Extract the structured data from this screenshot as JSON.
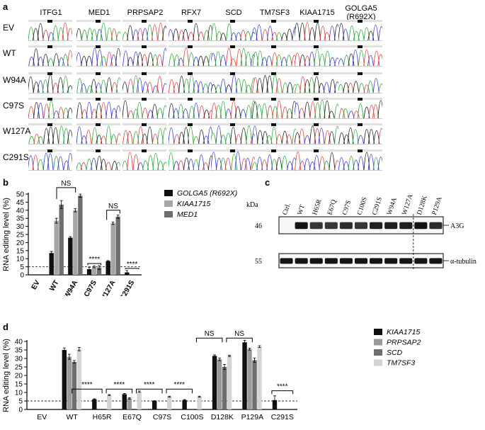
{
  "panel_a": {
    "letter": "a",
    "genes": [
      "ITFG1",
      "MED1",
      "PRPSAP2",
      "RFX7",
      "SCD",
      "TM7SF3",
      "KIAA1715",
      "GOLGA5 (R692X)"
    ],
    "genes_display": [
      [
        "ITFG1"
      ],
      [
        "MED1"
      ],
      [
        "PRPSAP2"
      ],
      [
        "RFX7"
      ],
      [
        "SCD"
      ],
      [
        "TM7SF3"
      ],
      [
        "KIAA1715"
      ],
      [
        "GOLGA5",
        "(R692X)"
      ]
    ],
    "rows": [
      "EV",
      "WT",
      "W94A",
      "C97S",
      "W127A",
      "C291S"
    ],
    "trace_colors": {
      "A": "#2eaa3c",
      "C": "#3d3dd6",
      "G": "#222222",
      "T": "#e04040"
    }
  },
  "chart_data": [
    {
      "panel": "b",
      "type": "bar",
      "ylabel": "RNA editing level (%)",
      "categories": [
        "EV",
        "WT",
        "W94A",
        "C97S",
        "W127A",
        "C291S"
      ],
      "series": [
        {
          "name": "GOLGA5 (R692X)",
          "color": "#111111",
          "values": [
            0,
            13.5,
            23,
            3.5,
            8.5,
            1.5
          ],
          "errors": [
            0,
            1,
            0.7,
            1.2,
            0.3,
            1.2
          ]
        },
        {
          "name": "KIAA1715",
          "color": "#a6a6a6",
          "values": [
            0,
            33.5,
            40,
            5,
            32,
            0
          ],
          "errors": [
            0,
            1.5,
            1,
            0.6,
            0.8,
            0
          ]
        },
        {
          "name": "MED1",
          "color": "#6e6e6e",
          "values": [
            0,
            43.5,
            49,
            4.5,
            36,
            0
          ],
          "errors": [
            0,
            2.5,
            1,
            1.2,
            1,
            0
          ]
        }
      ],
      "ylim": [
        0,
        50
      ],
      "yticks": [
        0,
        5,
        10,
        15,
        20,
        25,
        30,
        35,
        40,
        45,
        50
      ],
      "ytick_labels": [
        "0",
        "5",
        "10",
        "15",
        "20",
        "25",
        "30",
        "35",
        "40",
        "45",
        "50"
      ],
      "threshold": 5,
      "annotations": [
        {
          "from": "WT",
          "to": "W94A",
          "label": "NS"
        },
        {
          "from": "C97S",
          "to": "C97S",
          "label": "****"
        },
        {
          "from": "W127A",
          "to": "W127A",
          "label": "NS"
        },
        {
          "from": "C291S",
          "to": "C291S",
          "label": "****"
        }
      ]
    },
    {
      "panel": "d",
      "type": "bar",
      "ylabel": "RNA editing level (%)",
      "categories": [
        "EV",
        "WT",
        "H65R",
        "E67Q",
        "C97S",
        "C100S",
        "D128K",
        "P129A",
        "C291S"
      ],
      "series": [
        {
          "name": "KIAA1715",
          "color": "#111111",
          "values": [
            0,
            35,
            6,
            9,
            5,
            5.5,
            31.5,
            39.5,
            5.5
          ],
          "errors": [
            0,
            1.2,
            0.3,
            0.4,
            0.2,
            0.3,
            0.6,
            1.2,
            2.5
          ]
        },
        {
          "name": "PRPSAP2",
          "color": "#9a9a9a",
          "values": [
            0,
            31,
            0,
            6.5,
            0,
            0,
            29.5,
            35.5,
            0
          ],
          "errors": [
            0,
            1.5,
            0,
            0.4,
            0,
            0,
            0.8,
            0.6,
            0
          ]
        },
        {
          "name": "SCD",
          "color": "#6e6e6e",
          "values": [
            0,
            28,
            0,
            0,
            0,
            0,
            25,
            29,
            0
          ],
          "errors": [
            0,
            0.8,
            0,
            0,
            0,
            0,
            1.5,
            1.3,
            0
          ]
        },
        {
          "name": "TM7SF3",
          "color": "#d4d4d4",
          "values": [
            0,
            35.5,
            8.5,
            10.5,
            7.5,
            7.5,
            31.5,
            37,
            0
          ],
          "errors": [
            0,
            1,
            0.3,
            0.4,
            0.3,
            0.3,
            0.4,
            0.5,
            0
          ]
        }
      ],
      "ylim": [
        0,
        40
      ],
      "yticks": [
        0,
        5,
        10,
        15,
        20,
        25,
        30,
        35,
        40
      ],
      "ytick_labels": [
        "0",
        "5",
        "10",
        "15",
        "20",
        "25",
        "30",
        "35",
        "40"
      ],
      "threshold": 5,
      "annotations": [
        {
          "from": "WT",
          "to": "H65R",
          "label": "****"
        },
        {
          "from": "WT",
          "to": "E67Q",
          "label": "****"
        },
        {
          "from": "WT",
          "to": "C97S",
          "label": "****"
        },
        {
          "from": "WT",
          "to": "C100S",
          "label": "****"
        },
        {
          "from": "WT",
          "to": "D128K",
          "label": "NS"
        },
        {
          "from": "WT",
          "to": "P129A",
          "label": "NS"
        },
        {
          "from": "C291S",
          "to": "C291S",
          "label": "****"
        }
      ]
    }
  ],
  "panel_b": {
    "letter": "b"
  },
  "panel_d": {
    "letter": "d"
  },
  "panel_c": {
    "letter": "c",
    "kda_label": "kDa",
    "lanes": [
      "Ctrl.",
      "WT",
      "H65R",
      "E67Q",
      "C97S",
      "C100S",
      "C291S",
      "W94A",
      "W127A",
      "D128K",
      "P129A"
    ],
    "bands": [
      {
        "kda": "46",
        "label": "A3G",
        "intensities": [
          0,
          1,
          0.85,
          0.85,
          0.9,
          0.85,
          0.95,
          0.95,
          0.95,
          1,
          0.9
        ]
      },
      {
        "kda": "55",
        "label": "α-tubulin",
        "intensities": [
          1,
          1,
          1,
          1,
          1,
          1,
          1,
          1,
          1,
          1,
          1
        ]
      }
    ]
  }
}
